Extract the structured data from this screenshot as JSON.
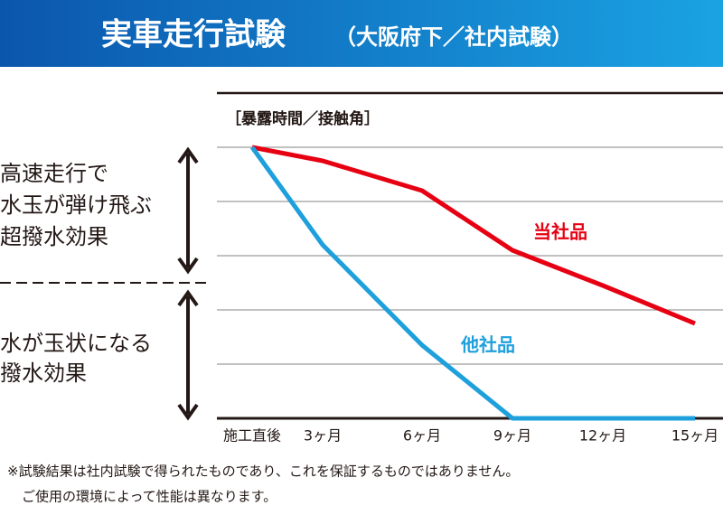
{
  "header": {
    "title": "実車走行試験",
    "subtitle": "（大阪府下／社内試験）"
  },
  "chart_data": {
    "type": "line",
    "axis_label": "［暴露時間／接触角］",
    "categories": [
      "施工直後",
      "3ヶ月",
      "6ヶ月",
      "9ヶ月",
      "12ヶ月",
      "15ヶ月"
    ],
    "series": [
      {
        "name": "当社品",
        "color": "#e60012",
        "values": [
          5,
          4.75,
          4.2,
          3.1,
          2.45,
          1.75
        ]
      },
      {
        "name": "他社品",
        "color": "#1ea0dc",
        "values": [
          5,
          3.2,
          1.35,
          0,
          0,
          0
        ]
      }
    ],
    "ylim": [
      0,
      5
    ],
    "gridlines": [
      1,
      2,
      3,
      4,
      5
    ]
  },
  "side_labels": [
    [
      "高速走行で",
      "水玉が弾け飛ぶ",
      "超撥水効果"
    ],
    [
      "水が玉状になる",
      "撥水効果"
    ]
  ],
  "notes": [
    "※試験結果は社内試験で得られたものであり、これを保証するものではありません。",
    "ご使用の環境によって性能は異なります。"
  ]
}
